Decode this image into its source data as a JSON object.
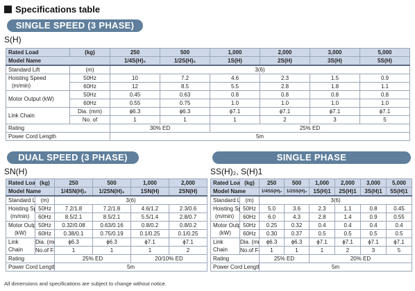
{
  "header": {
    "title": "Specifications table"
  },
  "single_speed": {
    "banner": "SINGLE SPEED (3 PHASE)",
    "model": "S(H)",
    "rows": {
      "rated_load": [
        "Rated Load",
        "(kg)",
        "250",
        "500",
        "1,000",
        "2,000",
        "3,000",
        "5,000"
      ],
      "model_name": [
        "Model Name",
        "1/4S(H)₂",
        "1/2S(H)₂",
        "1S(H)",
        "2S(H)",
        "3S(H)",
        "5S(H)"
      ],
      "standard_lift": [
        "Standard Lift",
        "(m)",
        "3(6)"
      ],
      "hoisting_label": "Hoisting Speed",
      "hoisting_unit": "(m/min)",
      "hoisting_50": [
        "50Hz",
        "10",
        "7.2",
        "4.6",
        "2.3",
        "1.5",
        "0.9"
      ],
      "hoisting_60": [
        "60Hz",
        "12",
        "8.5",
        "5.5",
        "2.8",
        "1.8",
        "1.1"
      ],
      "motor_label": "Motor Output (kW)",
      "motor_50": [
        "50Hz",
        "0.45",
        "0.63",
        "0.8",
        "0.8",
        "0.8",
        "0.8"
      ],
      "motor_60": [
        "60Hz",
        "0.55",
        "0.75",
        "1.0",
        "1.0",
        "1.0",
        "1.0"
      ],
      "chain_label": "Link Chain",
      "chain_dia": [
        "Dia. (mm)",
        "ϕ6.3",
        "ϕ6.3",
        "ϕ7.1",
        "ϕ7.1",
        "ϕ7.1",
        "ϕ7.1"
      ],
      "chain_no": [
        "No. of",
        "1",
        "1",
        "1",
        "2",
        "3",
        "5"
      ],
      "rating": [
        "Rating",
        "30% ED",
        "25% ED"
      ],
      "cord": [
        "Power Cord Length",
        "5m"
      ]
    }
  },
  "dual_speed": {
    "banner": "DUAL SPEED (3 PHASE)",
    "model": "SN(H)",
    "rows": {
      "rated_load": [
        "Rated Load",
        "(kg)",
        "250",
        "500",
        "1,000",
        "2,000"
      ],
      "model_name": [
        "Model Name",
        "1/4SN(H)₂",
        "1/2SN(H)₂",
        "1SN(H)",
        "2SN(H)"
      ],
      "standard_lift": [
        "Standard Lift",
        "(m)",
        "3(6)"
      ],
      "hoisting_label": "Hoisting Speed",
      "hoisting_unit": "(m/min)",
      "hoisting_50": [
        "50Hz",
        "7.2/1.8",
        "7.2/1.8",
        "4.6/1.2",
        "2.3/0.6"
      ],
      "hoisting_60": [
        "60Hz",
        "8.5/2.1",
        "8.5/2.1",
        "5.5/1.4",
        "2.8/0.7"
      ],
      "motor_label": "Motor Output",
      "motor_unit": "(kW)",
      "motor_50": [
        "50Hz",
        "0.32/0.08",
        "0.63/0.16",
        "0.8/0.2",
        "0.8/0.2"
      ],
      "motor_60": [
        "60Hz",
        "0.38/0.1",
        "0.75/0.19",
        "0.1/0.25",
        "0.1/0.25"
      ],
      "chain_label": "Link",
      "chain_label2": "Chain",
      "chain_dia": [
        "Dia. (mm)",
        "ϕ6.3",
        "ϕ6.3",
        "ϕ7.1",
        "ϕ7.1"
      ],
      "chain_no": [
        "No.of Falls",
        "1",
        "1",
        "1",
        "2"
      ],
      "rating": [
        "Rating",
        "25% ED",
        "20/10% ED"
      ],
      "cord": [
        "Power Cord Length",
        "5m"
      ]
    }
  },
  "single_phase": {
    "banner": "SINGLE PHASE",
    "model": "SS(H)₂, S(H)1",
    "rows": {
      "rated_load": [
        "Rated Load",
        "(kg)",
        "250",
        "500",
        "1,000",
        "2,000",
        "3,000",
        "5,000"
      ],
      "model_name": [
        "Model Name",
        "1/4SS(H)₂",
        "1/2SS(H)₂",
        "1S(H)1",
        "2S(H)1",
        "3S(H)1",
        "5S(H)1"
      ],
      "standard_lift": [
        "Standard Lift",
        "(m)",
        "3(6)"
      ],
      "hoisting_label": "Hoisting Speed",
      "hoisting_unit": "(m/min)",
      "hoisting_50": [
        "50Hz",
        "5.0",
        "3.6",
        "2.3",
        "1.1",
        "0.8",
        "0.45"
      ],
      "hoisting_60": [
        "60Hz",
        "6.0",
        "4.3",
        "2.8",
        "1.4",
        "0.9",
        "0.55"
      ],
      "motor_label": "Motor Output",
      "motor_unit": "(kW)",
      "motor_50": [
        "50Hz",
        "0.25",
        "0.32",
        "0.4",
        "0.4",
        "0.4",
        "0.4"
      ],
      "motor_60": [
        "60Hz",
        "0.30",
        "0.37",
        "0.5",
        "0.5",
        "0.5",
        "0.5"
      ],
      "chain_label": "Link",
      "chain_label2": "Chain",
      "chain_dia": [
        "Dia. (mm)",
        "ϕ6.3",
        "ϕ6.3",
        "ϕ7.1",
        "ϕ7.1",
        "ϕ7.1",
        "ϕ7.1"
      ],
      "chain_no": [
        "No.of Falls",
        "1",
        "1",
        "1",
        "2",
        "3",
        "5"
      ],
      "rating": [
        "Rating",
        "25% ED",
        "20% ED"
      ],
      "cord": [
        "Power Cord Length",
        "5m"
      ]
    }
  },
  "footnote": "All dimensions and specifications are subject to change without notice."
}
